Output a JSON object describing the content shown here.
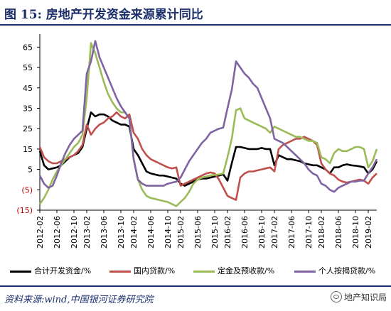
{
  "page_title": "图 15:  房地产开发资金来源累计同比",
  "source_note": "资料来源:wind,中国银河证券研究院",
  "watermark": "地产知识局",
  "colors": {
    "title": "#1b2f6b",
    "total": "#000000",
    "domestic_loans": "#c0504d",
    "deposits_prepayments": "#9bbb59",
    "mortgage": "#8064a2"
  },
  "chart_data": {
    "type": "line",
    "x": [
      "2012-02",
      "2012-03",
      "2012-04",
      "2012-05",
      "2012-06",
      "2012-07",
      "2012-08",
      "2012-09",
      "2012-10",
      "2012-11",
      "2012-12",
      "2013-02",
      "2013-03",
      "2013-04",
      "2013-05",
      "2013-06",
      "2013-07",
      "2013-08",
      "2013-09",
      "2013-10",
      "2013-11",
      "2013-12",
      "2014-02",
      "2014-03",
      "2014-04",
      "2014-05",
      "2014-06",
      "2014-07",
      "2014-08",
      "2014-09",
      "2014-10",
      "2014-11",
      "2014-12",
      "2015-02",
      "2015-03",
      "2015-04",
      "2015-05",
      "2015-06",
      "2015-07",
      "2015-08",
      "2015-09",
      "2015-10",
      "2015-11",
      "2015-12",
      "2016-02",
      "2016-03",
      "2016-04",
      "2016-05",
      "2016-06",
      "2016-07",
      "2016-08",
      "2016-09",
      "2016-10",
      "2016-11",
      "2016-12",
      "2017-02",
      "2017-03",
      "2017-04",
      "2017-05",
      "2017-06",
      "2017-07",
      "2017-08",
      "2017-09",
      "2017-10",
      "2017-11",
      "2017-12",
      "2018-02",
      "2018-03",
      "2018-04",
      "2018-05",
      "2018-06",
      "2018-07",
      "2018-08",
      "2018-09",
      "2018-10",
      "2018-11",
      "2018-12",
      "2019-02",
      "2019-03",
      "2019-04"
    ],
    "x_tick_labels": [
      "2012-02",
      "2012-06",
      "2012-10",
      "2013-02",
      "2013-06",
      "2013-10",
      "2014-02",
      "2014-06",
      "2014-10",
      "2015-02",
      "2015-06",
      "2015-10",
      "2016-02",
      "2016-06",
      "2016-10",
      "2017-02",
      "2017-06",
      "2017-10",
      "2018-02",
      "2018-06",
      "2018-10",
      "2019-02"
    ],
    "y_tick_labels": [
      "65",
      "55",
      "45",
      "35",
      "25",
      "15",
      "5",
      "(5)",
      "(15)"
    ],
    "ylim": [
      -15,
      70
    ],
    "grid": false,
    "legend_position": "bottom",
    "series": [
      {
        "name": "合计开发资金/%",
        "color_key": "total",
        "values": [
          14,
          7,
          5,
          5.5,
          6,
          7,
          9,
          11,
          12,
          13,
          16,
          25,
          33,
          31,
          32,
          32,
          31,
          29,
          28,
          27,
          27,
          26,
          15,
          12,
          8,
          4,
          3,
          2.5,
          2,
          2,
          1.5,
          1,
          0.5,
          -2,
          -3,
          -2,
          -1,
          0,
          0.5,
          0.5,
          1,
          1.5,
          2,
          2.6,
          -0.5,
          8,
          16,
          16,
          15.5,
          15,
          15,
          15,
          15.5,
          15,
          15,
          7,
          12,
          11,
          10,
          10,
          9.5,
          9,
          8,
          7.5,
          7,
          7,
          6,
          5,
          3,
          6,
          6,
          7,
          7.5,
          7,
          6.8,
          6.5,
          6,
          3,
          5,
          9
        ]
      },
      {
        "name": "国内贷款/%",
        "color_key": "domestic_loans",
        "values": [
          16,
          11,
          9,
          8,
          8,
          9,
          10,
          11,
          12,
          14,
          17,
          27,
          22,
          25,
          27,
          28,
          30,
          31,
          33,
          31,
          30,
          32,
          23,
          20,
          15,
          12,
          10,
          9,
          8,
          7,
          6,
          5.5,
          6,
          -3,
          -2,
          -1,
          0,
          1,
          2,
          3,
          3.5,
          3,
          0,
          -4,
          -8,
          -9,
          -10,
          1,
          3,
          4,
          4,
          4.5,
          5,
          5.5,
          6,
          4,
          15,
          17,
          18,
          19,
          20,
          20,
          21,
          20,
          19,
          17,
          8,
          5,
          3,
          2,
          0,
          -1,
          -1.5,
          -1,
          -0.5,
          0,
          -0.5,
          -2,
          1,
          3
        ]
      },
      {
        "name": "定金及预收款/%",
        "color_key": "deposits_prepayments",
        "values": [
          -12,
          -9,
          -5,
          0,
          4,
          7,
          10,
          13,
          16,
          18,
          22,
          40,
          67,
          62,
          55,
          48,
          42,
          38,
          35,
          33,
          33,
          30,
          10,
          0,
          -5,
          -8,
          -9,
          -9.5,
          -10,
          -10.5,
          -11,
          -12,
          -13,
          -11,
          -9,
          -6,
          -2,
          0,
          1,
          1.5,
          2,
          2.3,
          2.5,
          3,
          11,
          20,
          34,
          35,
          30,
          29,
          28,
          27,
          26,
          25,
          23,
          26,
          25,
          24,
          23,
          22,
          21,
          21,
          20,
          19,
          19,
          18,
          11,
          10,
          8,
          13,
          15,
          14,
          14,
          15,
          16,
          16,
          15,
          6,
          9,
          15
        ]
      },
      {
        "name": "个人按揭贷款/%",
        "color_key": "mortgage",
        "values": [
          2,
          -2,
          -4,
          -3,
          2,
          8,
          13,
          17,
          20,
          22,
          24,
          52,
          58,
          68,
          60,
          55,
          50,
          45,
          40,
          36,
          33,
          30,
          10,
          0,
          -2,
          -3,
          -3,
          -3,
          -3,
          -3,
          -2,
          -1.5,
          -1,
          1,
          5,
          9,
          12,
          15,
          18,
          20,
          23,
          24,
          25,
          25.5,
          35,
          44,
          58,
          55,
          52,
          50,
          47,
          45,
          40,
          35,
          30,
          20,
          19,
          18,
          16,
          14,
          12,
          10,
          8,
          5,
          3,
          2,
          -2,
          -3,
          -5,
          -6,
          -4,
          -3,
          -2,
          -1,
          -1,
          -0.5,
          -0.5,
          3,
          6,
          10
        ]
      }
    ]
  }
}
